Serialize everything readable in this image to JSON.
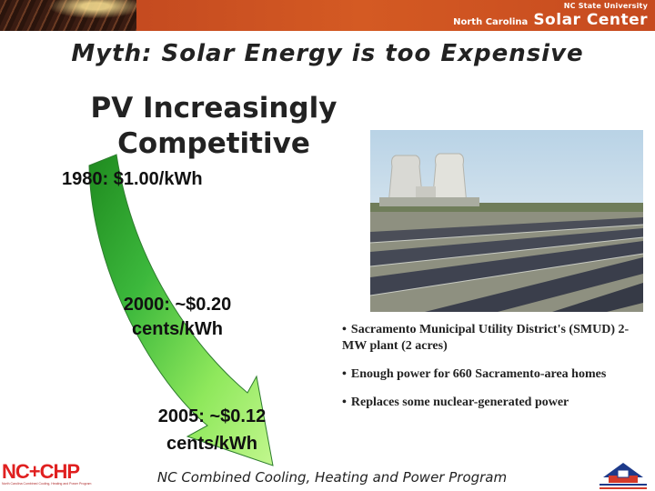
{
  "header": {
    "university": "NC State University",
    "org_prefix": "North Carolina",
    "org_name": "Solar Center",
    "accent_color": "#c8461f"
  },
  "slide": {
    "title": "Myth: Solar Energy is too Expensive",
    "heading_line1": "PV Increasingly",
    "heading_line2": "Competitive"
  },
  "timeline": [
    {
      "label": "1980:  $1.00/kWh"
    },
    {
      "line1": "2000:   ~$0.20",
      "line2": "cents/kWh"
    },
    {
      "line1": "2005:    ~$0.12",
      "line2": "cents/kWh"
    }
  ],
  "bullets": [
    "Sacramento Municipal Utility District's (SMUD)  2-MW plant    (2 acres)",
    "Enough power for 660 Sacramento-area homes",
    "Replaces some nuclear-generated power"
  ],
  "footer": {
    "program": "NC Combined Cooling, Heating and Power Program",
    "logo_left": "NC+CHP",
    "logo_left_sub": "North Carolina Combined Cooling, Heating and Power Program"
  },
  "colors": {
    "arrow_light": "#a6f06a",
    "arrow_dark": "#1f8a1f"
  }
}
